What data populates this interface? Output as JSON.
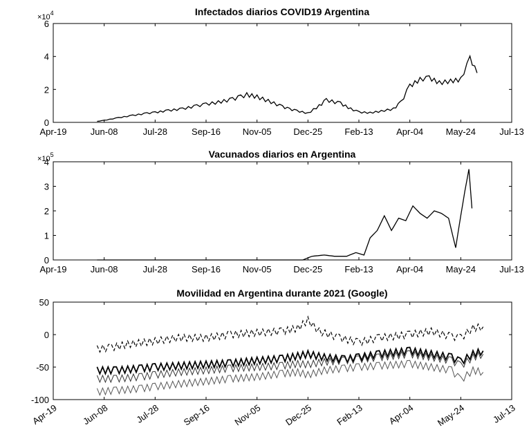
{
  "chart_data": [
    {
      "type": "line",
      "title": "Infectados diarios COVID19 Argentina",
      "xlabel": "",
      "ylabel": "",
      "exponent_label": "×10",
      "exponent": "4",
      "xlim": [
        "Apr-19",
        "Jul-13"
      ],
      "ylim": [
        0,
        60000
      ],
      "xtick_labels": [
        "Apr-19",
        "Jun-08",
        "Jul-28",
        "Sep-16",
        "Nov-05",
        "Dec-25",
        "Feb-13",
        "Apr-04",
        "May-24",
        "Jul-13"
      ],
      "ytick_labels": [
        "0",
        "2",
        "4",
        "6"
      ],
      "grid": false,
      "series": [
        {
          "x": [
            "Jun-01",
            "Jun-08",
            "Jun-22",
            "Jul-06",
            "Jul-20",
            "Jul-28",
            "Aug-10",
            "Aug-24",
            "Sep-07",
            "Sep-16",
            "Sep-28",
            "Oct-12",
            "Oct-20",
            "Oct-26",
            "Nov-05",
            "Nov-16",
            "Nov-30",
            "Dec-07",
            "Dec-14",
            "Dec-25",
            "Jan-05",
            "Jan-12",
            "Jan-26",
            "Feb-05",
            "Feb-13",
            "Feb-24",
            "Mar-07",
            "Mar-19",
            "Mar-26",
            "Apr-04",
            "Apr-14",
            "Apr-23",
            "May-03",
            "May-14",
            "May-24",
            "Jun-02",
            "Jun-09"
          ],
          "y": [
            600,
            1200,
            2800,
            4200,
            5500,
            6000,
            7200,
            8200,
            10000,
            11000,
            12200,
            14000,
            15500,
            16800,
            15500,
            13000,
            9500,
            8000,
            7000,
            5500,
            10000,
            13500,
            11500,
            8200,
            6200,
            5800,
            6800,
            8200,
            12000,
            22000,
            26000,
            27000,
            24000,
            25000,
            26000,
            39000,
            30000
          ]
        }
      ]
    },
    {
      "type": "line",
      "title": "Vacunados diarios en Argentina",
      "xlabel": "",
      "ylabel": "",
      "exponent_label": "×10",
      "exponent": "5",
      "xlim": [
        "Apr-19",
        "Jul-13"
      ],
      "ylim": [
        0,
        400000
      ],
      "xtick_labels": [
        "Apr-19",
        "Jun-08",
        "Jul-28",
        "Sep-16",
        "Nov-05",
        "Dec-25",
        "Feb-13",
        "Apr-04",
        "May-24",
        "Jul-13"
      ],
      "ytick_labels": [
        "0",
        "1",
        "2",
        "3",
        "4"
      ],
      "grid": false,
      "series": [
        {
          "x": [
            "Jun-01",
            "Jul-28",
            "Sep-16",
            "Nov-05",
            "Dec-20",
            "Dec-29",
            "Jan-10",
            "Jan-20",
            "Feb-01",
            "Feb-10",
            "Feb-18",
            "Feb-24",
            "Mar-03",
            "Mar-10",
            "Mar-17",
            "Mar-24",
            "Mar-31",
            "Apr-07",
            "Apr-14",
            "Apr-21",
            "Apr-28",
            "May-05",
            "May-12",
            "May-19",
            "May-24",
            "May-28",
            "Jun-01",
            "Jun-04"
          ],
          "y": [
            0,
            0,
            0,
            0,
            0,
            15000,
            20000,
            15000,
            15000,
            30000,
            20000,
            90000,
            120000,
            180000,
            120000,
            170000,
            160000,
            220000,
            190000,
            170000,
            200000,
            190000,
            170000,
            50000,
            180000,
            280000,
            370000,
            210000
          ]
        }
      ]
    },
    {
      "type": "line",
      "title": "Movilidad en Argentina durante 2021 (Google)",
      "xlabel": "",
      "ylabel": "",
      "xlim": [
        "Apr-19",
        "Jul-13"
      ],
      "ylim": [
        -100,
        50
      ],
      "xtick_labels": [
        "Apr-19",
        "Jun-08",
        "Jul-28",
        "Sep-16",
        "Nov-05",
        "Dec-25",
        "Feb-13",
        "Apr-04",
        "May-24",
        "Jul-13"
      ],
      "ytick_labels": [
        "-100",
        "-50",
        "0",
        "50"
      ],
      "grid": false,
      "series": [
        {
          "style": "dashed",
          "x": [
            "Jun-01",
            "Jun-15",
            "Jul-01",
            "Jul-28",
            "Aug-20",
            "Sep-16",
            "Oct-10",
            "Nov-05",
            "Nov-30",
            "Dec-15",
            "Dec-25",
            "Jan-05",
            "Jan-25",
            "Feb-13",
            "Mar-05",
            "Apr-04",
            "Apr-25",
            "May-15",
            "May-24",
            "Jun-05",
            "Jun-15"
          ],
          "y": [
            -22,
            -20,
            -15,
            -10,
            -5,
            -5,
            0,
            3,
            5,
            10,
            22,
            5,
            -5,
            -12,
            -5,
            0,
            5,
            -3,
            -5,
            10,
            12
          ]
        },
        {
          "style": "solid-thick",
          "x": [
            "Jun-01",
            "Jun-20",
            "Jul-15",
            "Jul-28",
            "Aug-20",
            "Sep-16",
            "Oct-10",
            "Nov-05",
            "Nov-30",
            "Dec-15",
            "Dec-25",
            "Jan-10",
            "Jan-30",
            "Feb-13",
            "Mar-05",
            "Apr-04",
            "Apr-25",
            "May-15",
            "May-24",
            "Jun-05",
            "Jun-15"
          ],
          "y": [
            -55,
            -55,
            -52,
            -50,
            -48,
            -46,
            -44,
            -40,
            -37,
            -33,
            -30,
            -35,
            -38,
            -35,
            -30,
            -25,
            -30,
            -35,
            -42,
            -30,
            -25
          ]
        },
        {
          "style": "solid-thin",
          "x": [
            "Jun-01",
            "Jun-20",
            "Jul-15",
            "Jul-28",
            "Aug-20",
            "Sep-16",
            "Oct-10",
            "Nov-05",
            "Nov-30",
            "Dec-15",
            "Dec-25",
            "Jan-10",
            "Jan-30",
            "Feb-13",
            "Mar-05",
            "Apr-04",
            "Apr-25",
            "May-15",
            "May-24",
            "Jun-05",
            "Jun-15"
          ],
          "y": [
            -68,
            -68,
            -65,
            -62,
            -58,
            -55,
            -52,
            -50,
            -48,
            -45,
            -46,
            -42,
            -40,
            -38,
            -35,
            -30,
            -35,
            -40,
            -48,
            -35,
            -30
          ]
        },
        {
          "style": "solid-gray",
          "x": [
            "Jun-01",
            "Jun-20",
            "Jul-15",
            "Jul-28",
            "Aug-20",
            "Sep-16",
            "Oct-10",
            "Nov-05",
            "Nov-30",
            "Dec-15",
            "Dec-25",
            "Jan-10",
            "Jan-30",
            "Feb-13",
            "Mar-05",
            "Apr-04",
            "Apr-25",
            "May-15",
            "May-24",
            "Jun-05",
            "Jun-15"
          ],
          "y": [
            -88,
            -86,
            -83,
            -80,
            -76,
            -72,
            -68,
            -65,
            -60,
            -58,
            -62,
            -55,
            -52,
            -50,
            -48,
            -45,
            -50,
            -55,
            -70,
            -55,
            -58
          ]
        }
      ]
    }
  ]
}
